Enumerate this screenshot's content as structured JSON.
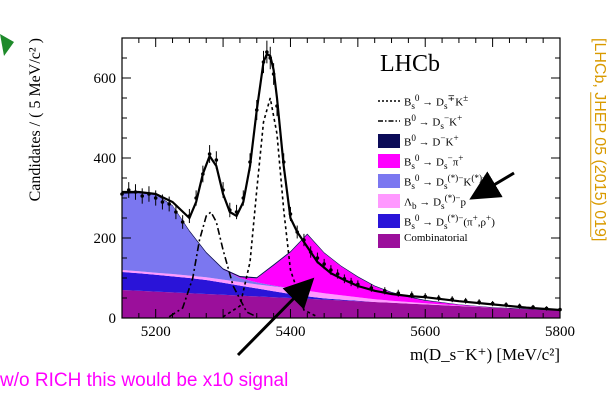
{
  "chart_data": {
    "type": "line",
    "xlabel": "m(D_s⁻K⁺) [MeV/c²]",
    "ylabel": "Candidates / ( 5 MeV/c² )",
    "xlim": [
      5150,
      5800
    ],
    "ylim": [
      0,
      700
    ],
    "x_ticks": [
      "5200",
      "5400",
      "5600",
      "5800"
    ],
    "y_ticks": [
      "0",
      "200",
      "400",
      "600"
    ],
    "experiment_label": "LHCb",
    "legend_position": "top-right",
    "legend": [
      {
        "style": "dotted",
        "color": "#000000",
        "label_html": "B<sub>s</sub><sup>0</sup> → D<sub>s</sub><sup>∓</sup>K<sup>±</sup>"
      },
      {
        "style": "dashdot",
        "color": "#000000",
        "label_html": "B<sup>0</sup> → D<sub>s</sub><sup>−</sup>K<sup>+</sup>"
      },
      {
        "style": "box",
        "color": "#0b0b57",
        "label_html": "B<sup>0</sup> → D<sup>−</sup>K<sup>+</sup>"
      },
      {
        "style": "box",
        "color": "#ff00ff",
        "label_html": "B<sub>s</sub><sup>0</sup> → D<sub>s</sub><sup>−</sup>π<sup>+</sup>"
      },
      {
        "style": "box",
        "color": "#7b77f0",
        "label_html": "B<sub>s</sub><sup>0</sup> → D<sub>s</sub><sup>(*)−</sup>K<sup>(*)+</sup>"
      },
      {
        "style": "box",
        "color": "#ff99ff",
        "label_html": "Λ<sub>b</sub> → D<sub>s</sub><sup>(*)−</sup>p"
      },
      {
        "style": "box",
        "color": "#2a14d8",
        "label_html": "B<sub>s</sub><sup>0</sup> → D<sub>s</sub><sup>(*)−</sup>(π<sup>+</sup>,ρ<sup>+</sup>)"
      },
      {
        "style": "box",
        "color": "#9b0f9b",
        "label_html": "Combinatorial"
      }
    ],
    "stack": {
      "x": [
        5150,
        5175,
        5200,
        5225,
        5250,
        5275,
        5300,
        5325,
        5350,
        5375,
        5400,
        5425,
        5450,
        5475,
        5500,
        5525,
        5550,
        5575,
        5600,
        5650,
        5700,
        5750,
        5800
      ],
      "combinatorial": [
        70,
        68,
        66,
        64,
        62,
        60,
        58,
        56,
        54,
        52,
        50,
        48,
        46,
        44,
        42,
        40,
        38,
        36,
        34,
        30,
        26,
        22,
        18
      ],
      "Bs_to_Ds_star_pi_rho": [
        45,
        44,
        42,
        40,
        38,
        35,
        30,
        25,
        20,
        15,
        10,
        6,
        3,
        2,
        1,
        0,
        0,
        0,
        0,
        0,
        0,
        0,
        0
      ],
      "Lb_to_Ds_p": [
        5,
        5,
        5,
        6,
        6,
        7,
        8,
        9,
        10,
        12,
        14,
        14,
        13,
        11,
        9,
        7,
        5,
        4,
        3,
        1,
        0,
        0,
        0
      ],
      "Bs_to_Ds_star_K_star": [
        190,
        195,
        195,
        170,
        110,
        60,
        25,
        10,
        5,
        2,
        0,
        0,
        0,
        0,
        0,
        0,
        0,
        0,
        0,
        0,
        0,
        0,
        0
      ],
      "Bs_to_Ds_pi": [
        0,
        0,
        0,
        0,
        0,
        0,
        0,
        2,
        10,
        50,
        90,
        140,
        100,
        72,
        50,
        32,
        20,
        12,
        6,
        2,
        0,
        0,
        0
      ],
      "B0_to_D_K": [
        2,
        2,
        2,
        2,
        3,
        3,
        3,
        3,
        3,
        3,
        3,
        3,
        2,
        2,
        2,
        2,
        2,
        2,
        2,
        1,
        1,
        1,
        1
      ]
    },
    "signal_Bs_to_DsK": {
      "x": [
        5300,
        5325,
        5340,
        5350,
        5360,
        5370,
        5380,
        5390,
        5400,
        5420,
        5440
      ],
      "y": [
        3,
        30,
        140,
        320,
        490,
        550,
        460,
        270,
        120,
        20,
        3
      ]
    },
    "signal_B0_to_DsK": {
      "x": [
        5220,
        5240,
        5255,
        5265,
        5275,
        5282,
        5290,
        5300,
        5315,
        5335,
        5350
      ],
      "y": [
        3,
        25,
        100,
        195,
        255,
        265,
        240,
        170,
        80,
        15,
        3
      ]
    },
    "total_fit": {
      "x": [
        5150,
        5175,
        5200,
        5225,
        5250,
        5260,
        5270,
        5280,
        5290,
        5300,
        5310,
        5320,
        5330,
        5340,
        5350,
        5360,
        5365,
        5370,
        5375,
        5380,
        5390,
        5400,
        5410,
        5420,
        5440,
        5460,
        5480,
        5500,
        5525,
        5550,
        5575,
        5600,
        5650,
        5700,
        5750,
        5800
      ],
      "y": [
        315,
        315,
        310,
        290,
        250,
        290,
        360,
        405,
        380,
        310,
        265,
        255,
        290,
        380,
        520,
        640,
        660,
        655,
        620,
        550,
        380,
        250,
        215,
        190,
        140,
        112,
        95,
        80,
        68,
        60,
        55,
        52,
        42,
        34,
        26,
        20
      ]
    },
    "data_points": {
      "x": [
        5150,
        5160,
        5170,
        5180,
        5190,
        5200,
        5210,
        5220,
        5230,
        5240,
        5250,
        5260,
        5270,
        5280,
        5290,
        5300,
        5310,
        5320,
        5330,
        5340,
        5350,
        5360,
        5365,
        5370,
        5375,
        5380,
        5390,
        5400,
        5410,
        5420,
        5430,
        5440,
        5450,
        5460,
        5470,
        5480,
        5490,
        5500,
        5520,
        5540,
        5560,
        5580,
        5600,
        5620,
        5640,
        5660,
        5680,
        5700,
        5720,
        5740,
        5760,
        5780,
        5800
      ],
      "y": [
        310,
        320,
        315,
        305,
        310,
        300,
        290,
        285,
        265,
        240,
        255,
        300,
        360,
        410,
        395,
        320,
        270,
        265,
        300,
        390,
        520,
        640,
        665,
        650,
        610,
        530,
        390,
        260,
        215,
        195,
        165,
        150,
        135,
        120,
        110,
        98,
        90,
        84,
        75,
        68,
        62,
        58,
        54,
        50,
        47,
        43,
        40,
        36,
        33,
        30,
        27,
        24,
        21
      ]
    }
  },
  "side_reference": {
    "prefix": "[LHCb, ",
    "link": "JHEP 05 (2015) 019",
    "suffix": "]",
    "color": "#d99a00"
  },
  "annotation": {
    "text": "w/o RICH this would be x10 signal",
    "color": "#ff00ff"
  }
}
